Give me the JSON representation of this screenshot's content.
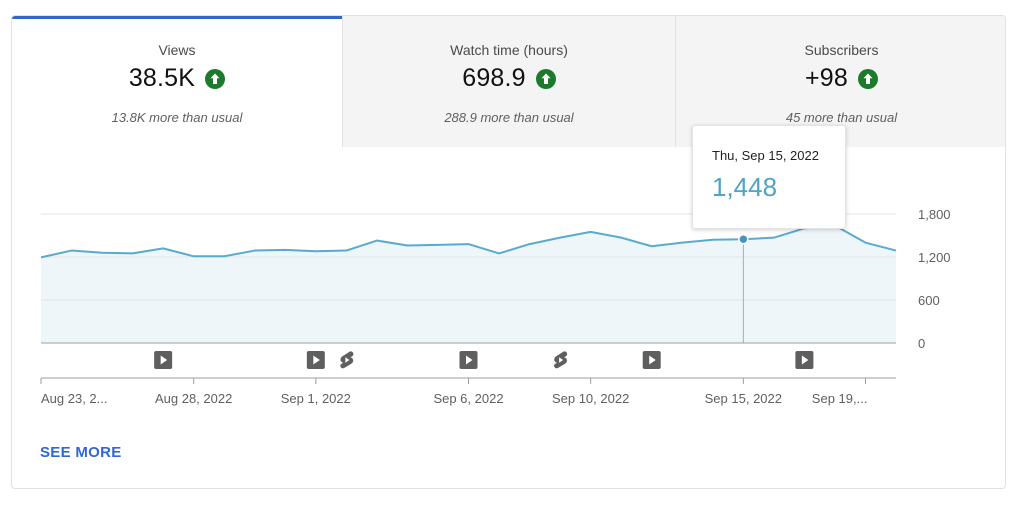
{
  "tabs": [
    {
      "name": "Views",
      "value": "38.5K",
      "sub": "13.8K more than usual",
      "trend_icon": "arrow-up-icon",
      "active": true
    },
    {
      "name": "Watch time (hours)",
      "value": "698.9",
      "sub": "288.9 more than usual",
      "trend_icon": "arrow-up-icon",
      "active": false
    },
    {
      "name": "Subscribers",
      "value": "+98",
      "sub": "45 more than usual",
      "trend_icon": "arrow-up-icon",
      "active": false
    }
  ],
  "tooltip": {
    "date": "Thu, Sep 15, 2022",
    "value": "1,448"
  },
  "see_more": "SEE MORE",
  "colors": {
    "accent": "#3366cc",
    "line": "#5aaad0",
    "fill": "#eef6fa",
    "trend_up": "#1d7a2d",
    "tooltip_value": "#4fa3c7"
  },
  "chart_data": {
    "type": "area",
    "ylim": [
      0,
      1800
    ],
    "y_ticks": [
      "1,800",
      "1,200",
      "600",
      "0"
    ],
    "y_tick_values": [
      1800,
      1200,
      600,
      0
    ],
    "x_tick_labels": [
      "Aug 23, 2...",
      "Aug 28, 2022",
      "Sep 1, 2022",
      "Sep 6, 2022",
      "Sep 10, 2022",
      "Sep 15, 2022",
      "Sep 19,..."
    ],
    "x_tick_dates": [
      "Aug 23",
      "Aug 28",
      "Sep 1",
      "Sep 6",
      "Sep 10",
      "Sep 15",
      "Sep 19"
    ],
    "x": [
      "Aug 23",
      "Aug 24",
      "Aug 25",
      "Aug 26",
      "Aug 27",
      "Aug 28",
      "Aug 29",
      "Aug 30",
      "Aug 31",
      "Sep 1",
      "Sep 2",
      "Sep 3",
      "Sep 4",
      "Sep 5",
      "Sep 6",
      "Sep 7",
      "Sep 8",
      "Sep 9",
      "Sep 10",
      "Sep 11",
      "Sep 12",
      "Sep 13",
      "Sep 14",
      "Sep 15",
      "Sep 16",
      "Sep 17",
      "Sep 18",
      "Sep 19",
      "Sep 20"
    ],
    "values": [
      1195,
      1290,
      1260,
      1250,
      1320,
      1210,
      1210,
      1290,
      1300,
      1280,
      1290,
      1430,
      1360,
      1370,
      1380,
      1250,
      1380,
      1470,
      1550,
      1470,
      1350,
      1400,
      1440,
      1448,
      1470,
      1600,
      1640,
      1400,
      1290
    ],
    "highlight_index": 23,
    "markers": [
      {
        "date": "Aug 27",
        "icon": "video-icon"
      },
      {
        "date": "Sep 1",
        "icon": "video-icon"
      },
      {
        "date": "Sep 2",
        "icon": "shorts-icon"
      },
      {
        "date": "Sep 6",
        "icon": "video-icon"
      },
      {
        "date": "Sep 9",
        "icon": "shorts-icon"
      },
      {
        "date": "Sep 12",
        "icon": "video-icon"
      },
      {
        "date": "Sep 17",
        "icon": "video-icon"
      }
    ]
  }
}
